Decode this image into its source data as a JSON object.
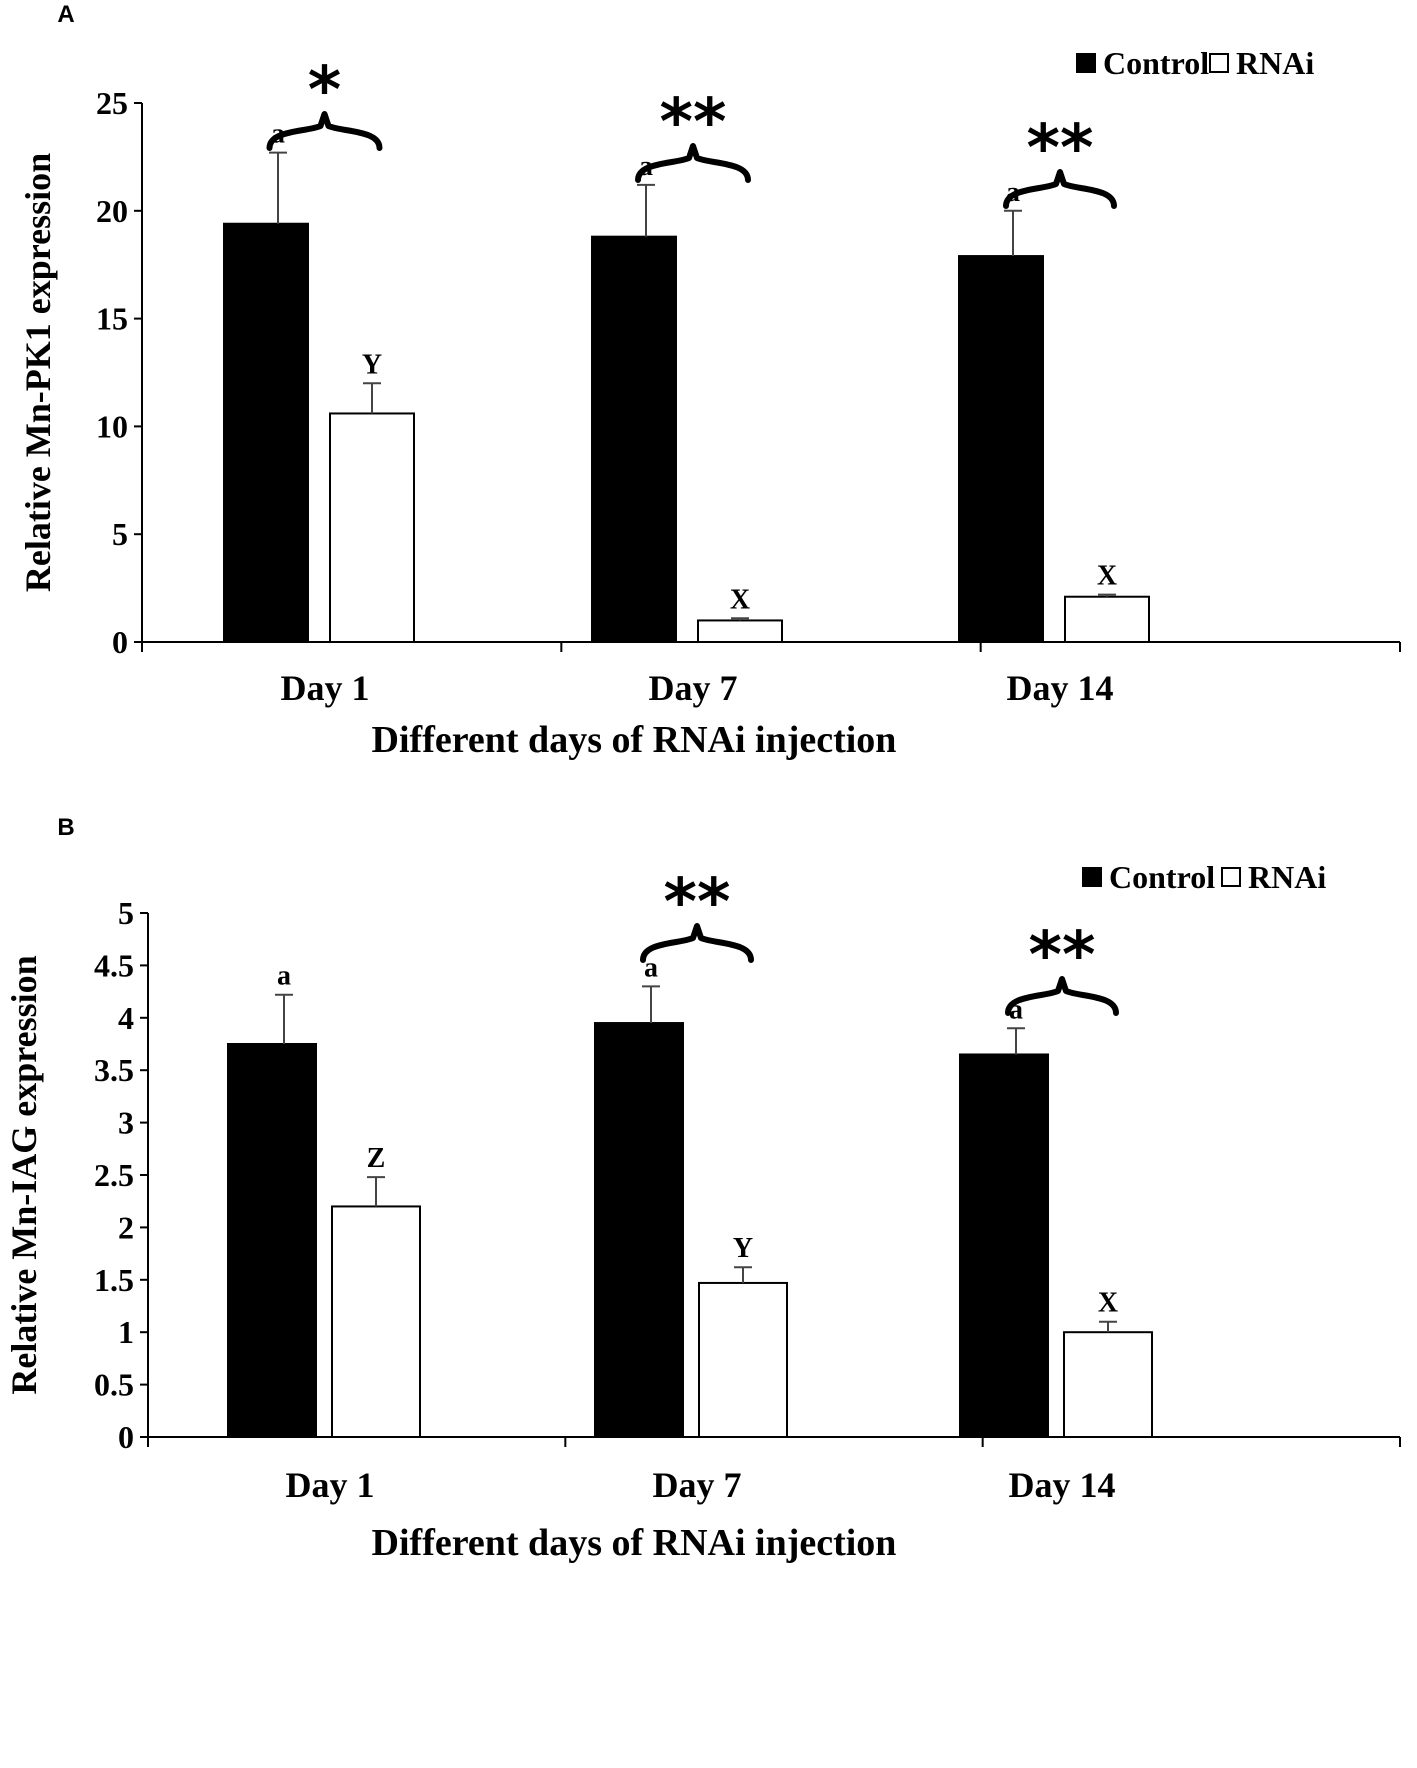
{
  "chart_data": [
    {
      "panel": "A",
      "type": "bar",
      "ylabel": "Relative Mn-PK1 expression",
      "xlabel": "Different days of RNAi injection",
      "categories": [
        "Day 1",
        "Day 7",
        "Day 14"
      ],
      "ylim": [
        0,
        25
      ],
      "yticks": [
        0,
        5,
        10,
        15,
        20,
        25
      ],
      "ytick_labels": [
        "0",
        "5",
        "10",
        "15",
        "20",
        "25"
      ],
      "legend": [
        "Control",
        "RNAi"
      ],
      "legend_position": "top-right",
      "series": [
        {
          "name": "Control",
          "color": "#000000",
          "values": [
            19.4,
            18.8,
            17.9
          ],
          "errors": [
            3.3,
            2.4,
            2.1
          ],
          "letters": [
            "a",
            "a",
            "a"
          ]
        },
        {
          "name": "RNAi",
          "color": "#ffffff",
          "values": [
            10.6,
            1.0,
            2.1
          ],
          "errors": [
            1.4,
            0.1,
            0.1
          ],
          "letters": [
            "Y",
            "X",
            "X"
          ]
        }
      ],
      "significance": [
        "*",
        "**",
        "**"
      ]
    },
    {
      "panel": "B",
      "type": "bar",
      "ylabel": "Relative Mn-IAG expression",
      "xlabel": "Different days of RNAi injection",
      "categories": [
        "Day 1",
        "Day 7",
        "Day 14"
      ],
      "ylim": [
        0,
        5
      ],
      "yticks": [
        0,
        0.5,
        1,
        1.5,
        2,
        2.5,
        3,
        3.5,
        4,
        4.5,
        5
      ],
      "ytick_labels": [
        "0",
        "0.5",
        "1",
        "1.5",
        "2",
        "2.5",
        "3",
        "3.5",
        "4",
        "4.5",
        "5"
      ],
      "legend": [
        "Control",
        "RNAi"
      ],
      "legend_position": "top-right",
      "series": [
        {
          "name": "Control",
          "color": "#000000",
          "values": [
            3.75,
            3.95,
            3.65
          ],
          "errors": [
            0.47,
            0.35,
            0.25
          ],
          "letters": [
            "a",
            "a",
            "a"
          ]
        },
        {
          "name": "RNAi",
          "color": "#ffffff",
          "values": [
            2.2,
            1.47,
            1.0
          ],
          "errors": [
            0.28,
            0.15,
            0.1
          ],
          "letters": [
            "Z",
            "Y",
            "X"
          ]
        }
      ],
      "significance": [
        "",
        "**",
        "**"
      ]
    }
  ]
}
